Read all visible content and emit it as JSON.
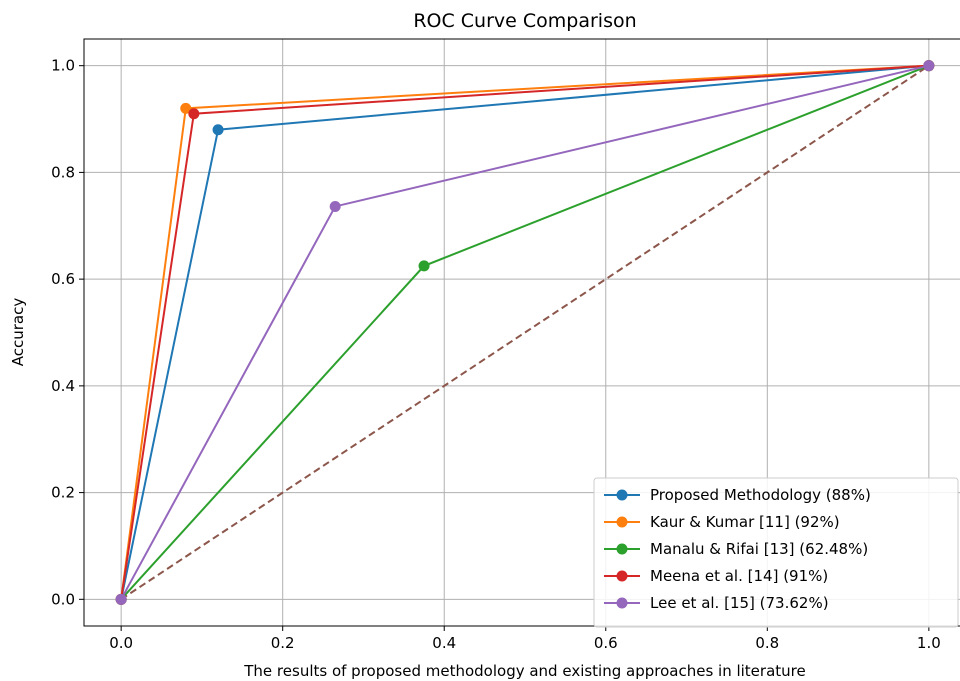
{
  "chart_data": {
    "type": "line",
    "title": "ROC Curve Comparison",
    "xlabel": "The results of proposed methodology and existing approaches in literature",
    "ylabel": "Accuracy",
    "xlim": [
      -0.046,
      1.046
    ],
    "ylim": [
      -0.05,
      1.05
    ],
    "xticks": [
      "0.0",
      "0.2",
      "0.4",
      "0.6",
      "0.8",
      "1.0"
    ],
    "yticks": [
      "0.0",
      "0.2",
      "0.4",
      "0.6",
      "0.8",
      "1.0"
    ],
    "grid": true,
    "legend_position": "lower-right",
    "series": [
      {
        "name": "Proposed Methodology (88%)",
        "color": "#1f77b4",
        "x": [
          0.0,
          0.12,
          1.0
        ],
        "y": [
          0.0,
          0.88,
          1.0
        ]
      },
      {
        "name": "Kaur & Kumar [11] (92%)",
        "color": "#ff7f0e",
        "x": [
          0.0,
          0.08,
          1.0
        ],
        "y": [
          0.0,
          0.92,
          1.0
        ]
      },
      {
        "name": "Manalu & Rifai [13] (62.48%)",
        "color": "#2ca02c",
        "x": [
          0.0,
          0.375,
          1.0
        ],
        "y": [
          0.0,
          0.6248,
          1.0
        ]
      },
      {
        "name": "Meena et al. [14] (91%)",
        "color": "#d62728",
        "x": [
          0.0,
          0.09,
          1.0
        ],
        "y": [
          0.0,
          0.91,
          1.0
        ]
      },
      {
        "name": "Lee et al. [15] (73.62%)",
        "color": "#9467bd",
        "x": [
          0.0,
          0.265,
          1.0
        ],
        "y": [
          0.0,
          0.7362,
          1.0
        ]
      }
    ],
    "reference_line": {
      "color": "#8c564b",
      "style": "dashed",
      "x": [
        0.0,
        1.0
      ],
      "y": [
        0.0,
        1.0
      ]
    }
  }
}
